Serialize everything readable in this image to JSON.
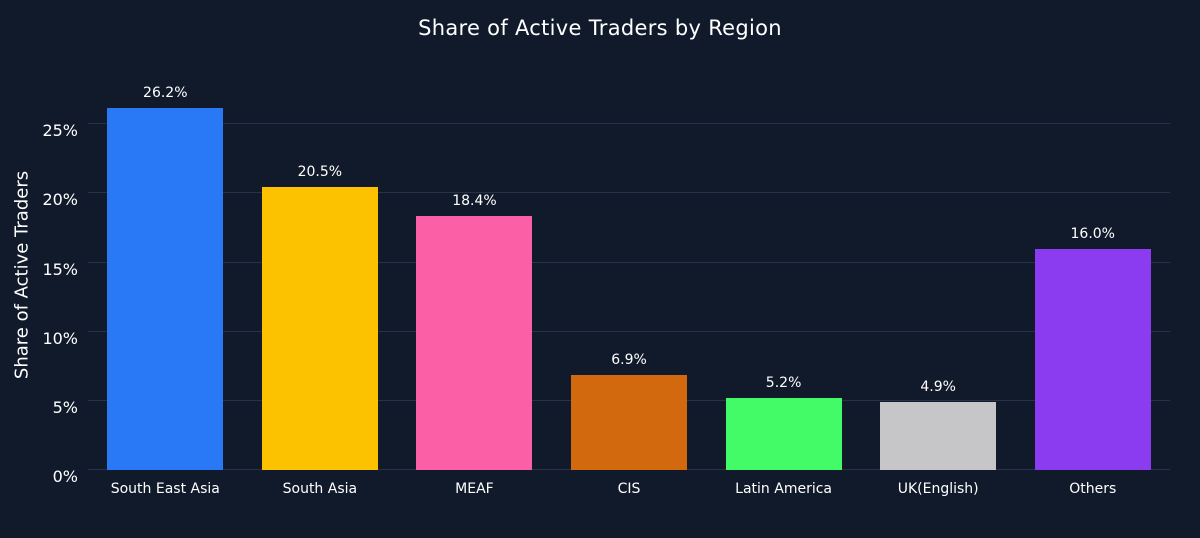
{
  "title": "Share of Active Traders by Region",
  "y_axis_title": "Share of Active Traders",
  "colors": {
    "background": "#111a2b",
    "text": "#ffffff",
    "grid": "#2a3954"
  },
  "chart_data": {
    "type": "bar",
    "title": "Share of Active Traders by Region",
    "xlabel": "",
    "ylabel": "Share of Active Traders",
    "categories": [
      "South East Asia",
      "South Asia",
      "MEAF",
      "CIS",
      "Latin America",
      "UK(English)",
      "Others"
    ],
    "values": [
      26.2,
      20.5,
      18.4,
      6.9,
      5.2,
      4.9,
      16.0
    ],
    "value_labels": [
      "26.2%",
      "20.5%",
      "18.4%",
      "6.9%",
      "5.2%",
      "4.9%",
      "16.0%"
    ],
    "bar_colors": [
      "#2979f7",
      "#fcc200",
      "#fb5fa5",
      "#d2690e",
      "#43fb67",
      "#c6c6c8",
      "#8c3cf0"
    ],
    "ylim": [
      0,
      28.2
    ],
    "grid": true,
    "tick_values": [
      0,
      5,
      10,
      15,
      20,
      25
    ],
    "tick_labels": [
      "0%",
      "5%",
      "10%",
      "15%",
      "20%",
      "25%"
    ],
    "legend": "none"
  }
}
